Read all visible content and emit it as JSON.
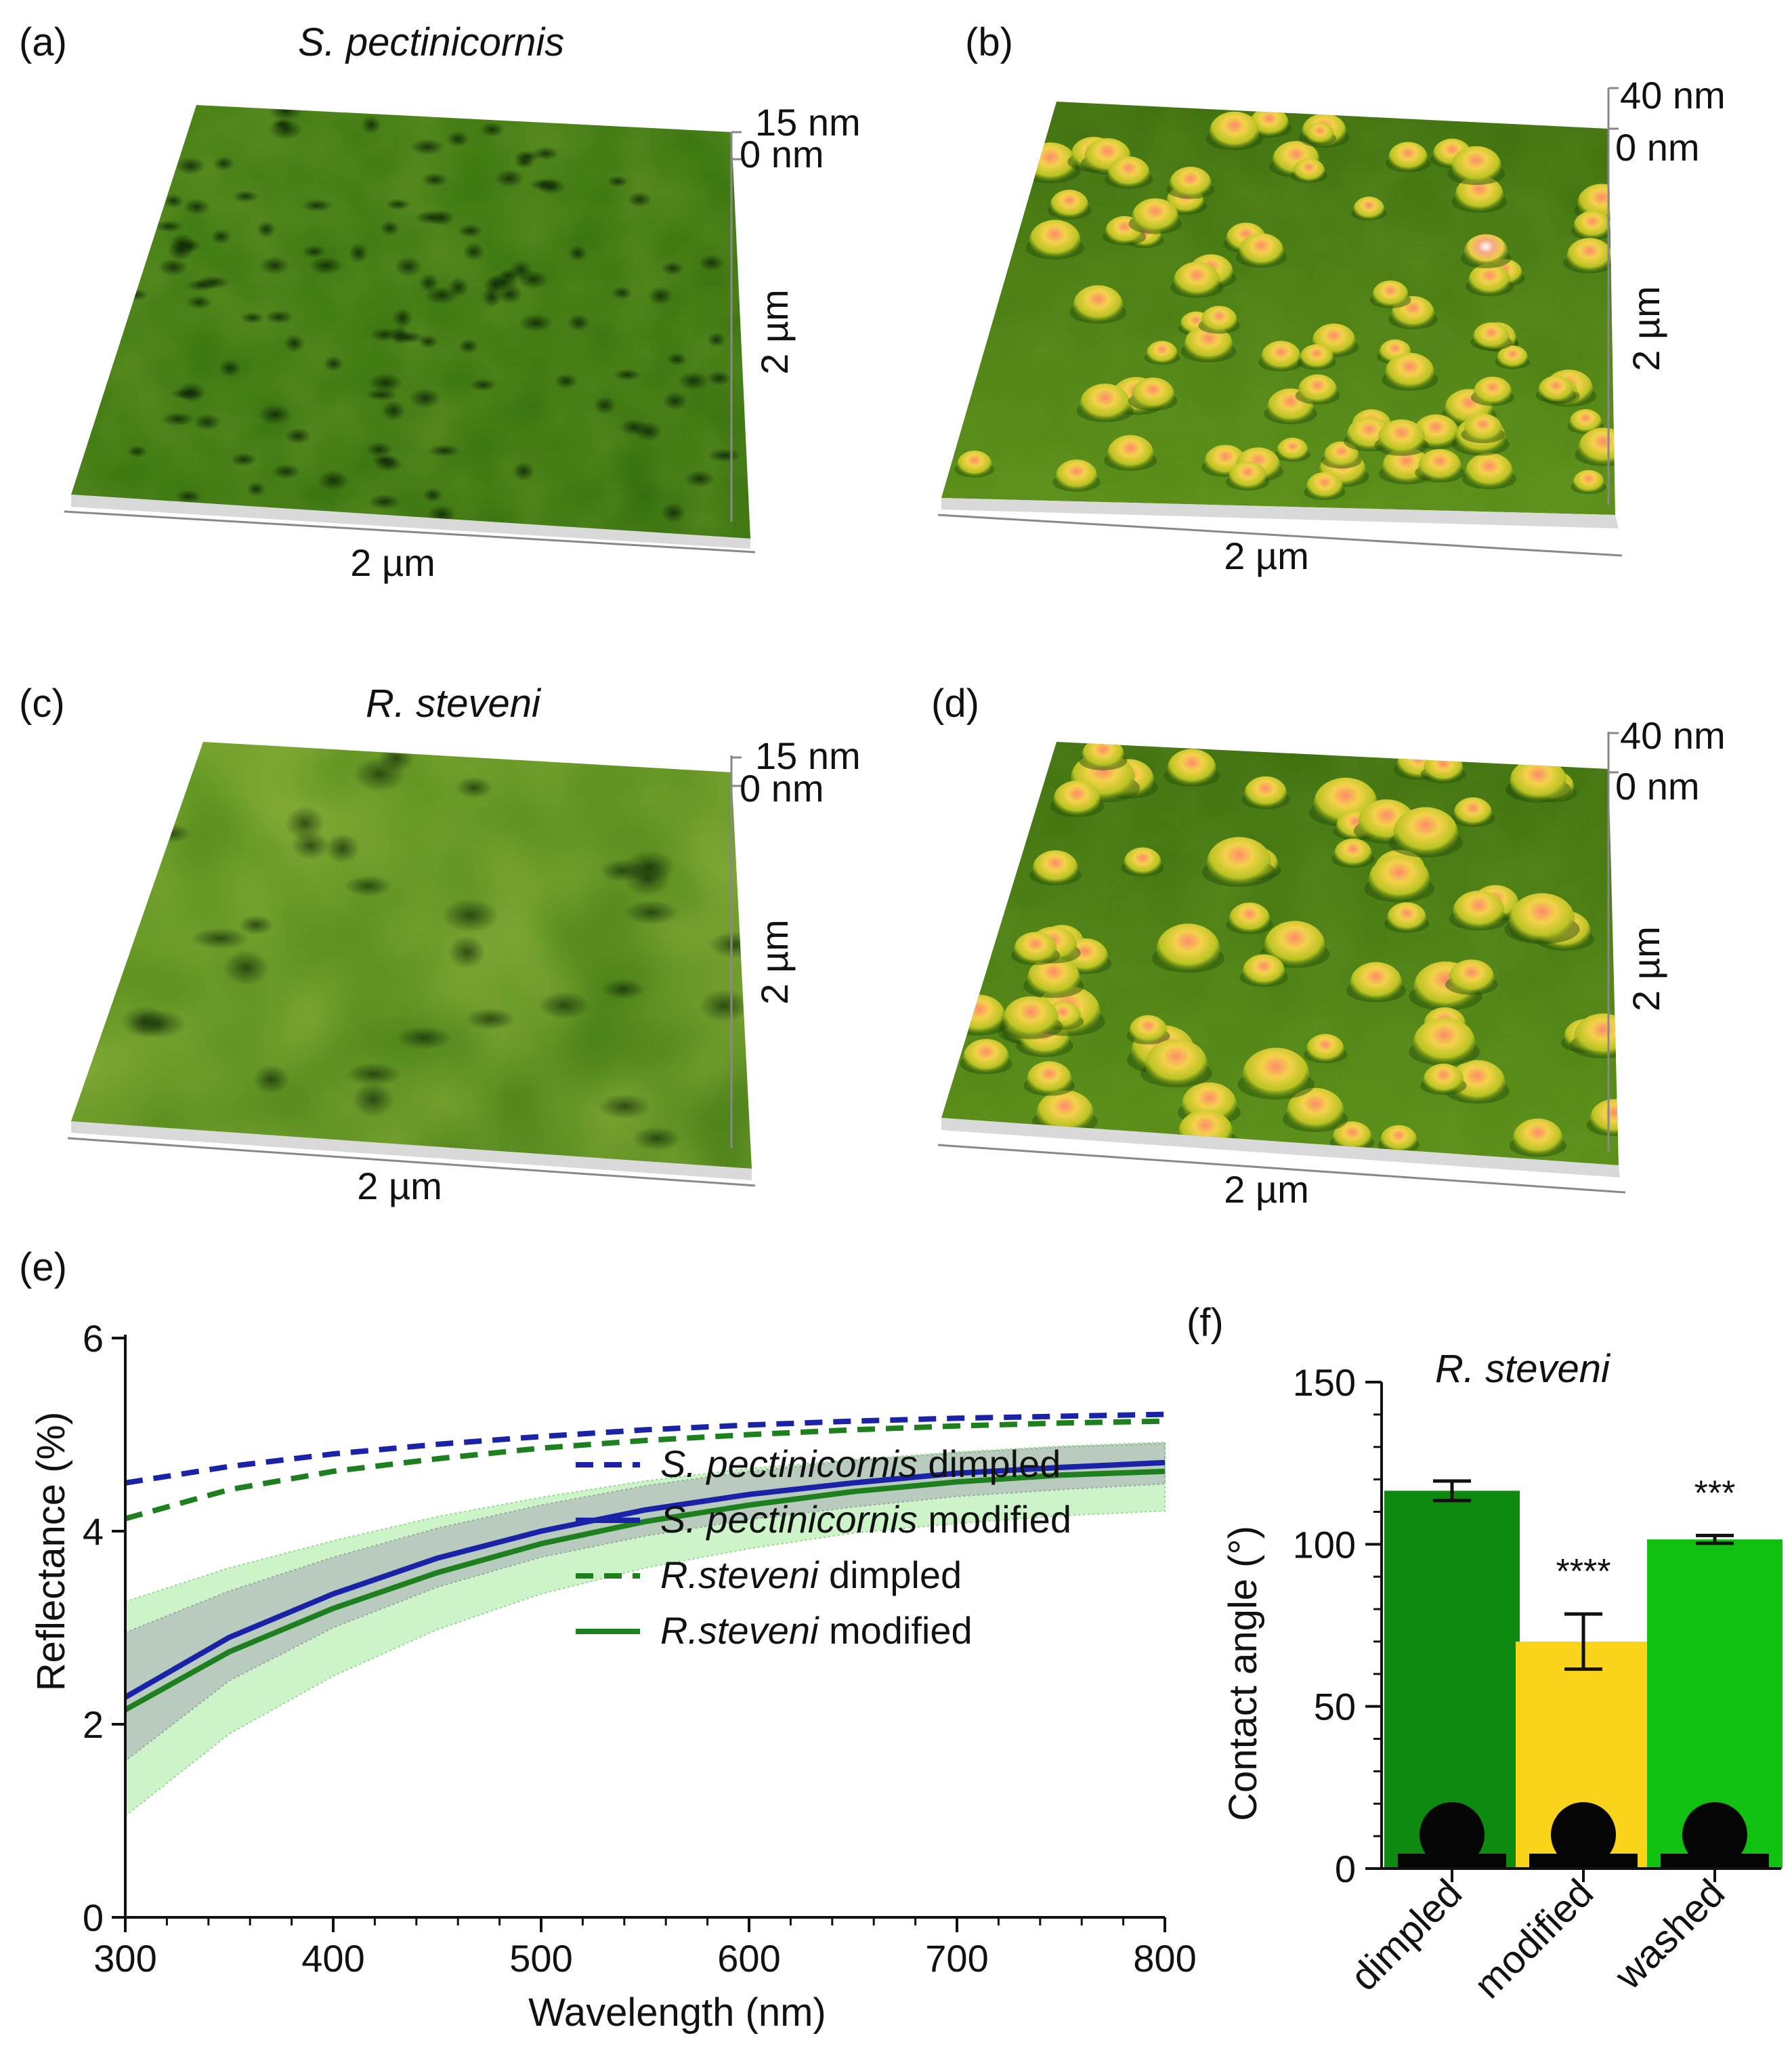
{
  "panels": {
    "a": {
      "letter": "(a)",
      "title": "S. pectinicornis",
      "z_max": "15 nm",
      "z_min": "0 nm",
      "y_label": "2 µm",
      "x_label": "2 µm"
    },
    "b": {
      "letter": "(b)",
      "z_max": "40 nm",
      "z_min": "0 nm",
      "y_label": "2 µm",
      "x_label": "2 µm"
    },
    "c": {
      "letter": "(c)",
      "title": "R. steveni",
      "z_max": "15 nm",
      "z_min": "0 nm",
      "y_label": "2 µm",
      "x_label": "2 µm"
    },
    "d": {
      "letter": "(d)",
      "z_max": "40 nm",
      "z_min": "0 nm",
      "y_label": "2 µm",
      "x_label": "2 µm"
    },
    "e": {
      "letter": "(e)"
    },
    "f": {
      "letter": "(f)"
    }
  },
  "colors": {
    "blue": "#1a22a8",
    "green": "#1d7f1d",
    "bar_dimpled": "#0f8a10",
    "bar_modified": "#fad41b",
    "bar_washed": "#11c111",
    "band_green": "#cdf3c9",
    "band_grey": "#b6c4bd"
  },
  "chart_data": [
    {
      "type": "line",
      "xlabel": "Wavelength (nm)",
      "ylabel": "Reflectance (%)",
      "xlim": [
        300,
        800
      ],
      "ylim": [
        0,
        6
      ],
      "xticks": [
        "300",
        "400",
        "500",
        "600",
        "700",
        "800"
      ],
      "yticks": [
        "0",
        "2",
        "4",
        "6"
      ],
      "x": [
        300,
        350,
        400,
        450,
        500,
        550,
        600,
        650,
        700,
        750,
        800
      ],
      "series": [
        {
          "name_italic": "S. pectinicornis",
          "name_rest": " dimpled",
          "style": "dashed",
          "color": "#1a22a8",
          "values": [
            4.5,
            4.67,
            4.8,
            4.9,
            4.98,
            5.05,
            5.1,
            5.14,
            5.17,
            5.19,
            5.21
          ]
        },
        {
          "name_italic": "S. pectinicornis",
          "name_rest": " modified",
          "style": "solid",
          "color": "#1a22a8",
          "values": [
            2.28,
            2.9,
            3.35,
            3.72,
            4.0,
            4.22,
            4.38,
            4.5,
            4.6,
            4.66,
            4.71
          ],
          "band_lower": [
            1.62,
            2.45,
            3.0,
            3.42,
            3.73,
            3.95,
            4.12,
            4.25,
            4.36,
            4.43,
            4.49
          ],
          "band_upper": [
            2.95,
            3.38,
            3.73,
            4.03,
            4.27,
            4.47,
            4.62,
            4.73,
            4.81,
            4.87,
            4.91
          ]
        },
        {
          "name_italic": "R.steveni",
          "name_rest": " dimpled",
          "style": "dashed",
          "color": "#1d7f1d",
          "values": [
            4.13,
            4.43,
            4.62,
            4.75,
            4.86,
            4.94,
            5.0,
            5.05,
            5.09,
            5.12,
            5.14
          ]
        },
        {
          "name_italic": "R.steveni",
          "name_rest": " modified",
          "style": "solid",
          "color": "#1d7f1d",
          "values": [
            2.15,
            2.75,
            3.2,
            3.57,
            3.87,
            4.1,
            4.27,
            4.41,
            4.51,
            4.58,
            4.62
          ],
          "band_lower": [
            1.05,
            1.9,
            2.5,
            2.98,
            3.35,
            3.62,
            3.82,
            3.98,
            4.08,
            4.16,
            4.21
          ],
          "band_upper": [
            3.27,
            3.62,
            3.9,
            4.15,
            4.35,
            4.52,
            4.65,
            4.74,
            4.82,
            4.88,
            4.92
          ]
        }
      ]
    },
    {
      "type": "bar",
      "title": "R. steveni",
      "ylabel": "Contact angle (°)",
      "ylim": [
        0,
        150
      ],
      "yticks": [
        "0",
        "50",
        "100",
        "150"
      ],
      "categories": [
        "dimpled",
        "modified",
        "washed"
      ],
      "values": [
        116.5,
        70.0,
        101.5
      ],
      "errors": [
        3.0,
        8.5,
        1.2
      ],
      "significance": [
        "",
        "****",
        "***"
      ],
      "bar_colors": [
        "#0f8a10",
        "#fad41b",
        "#11c111"
      ]
    }
  ]
}
